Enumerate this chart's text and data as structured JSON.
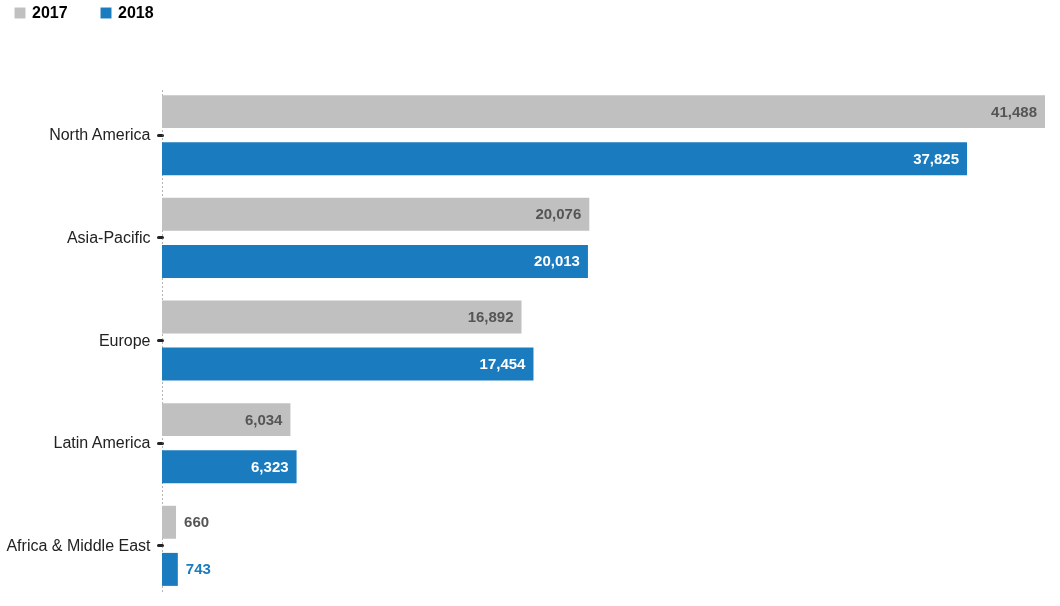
{
  "chart_data": {
    "type": "bar",
    "orientation": "horizontal",
    "legend": "top left",
    "categories": [
      "North America",
      "Asia-Pacific",
      "Europe",
      "Latin America",
      "Africa & Middle East"
    ],
    "series": [
      {
        "name": "2017",
        "color": "#c0c0c0",
        "values": [
          41488,
          20076,
          16892,
          6034,
          660
        ],
        "value_labels": [
          "41,488",
          "20,076",
          "16,892",
          "6,034",
          "660"
        ]
      },
      {
        "name": "2018",
        "color": "#1a7bbf",
        "values": [
          37825,
          20013,
          17454,
          6323,
          743
        ],
        "value_labels": [
          "37,825",
          "20,013",
          "17,454",
          "6,323",
          "743"
        ]
      }
    ]
  }
}
